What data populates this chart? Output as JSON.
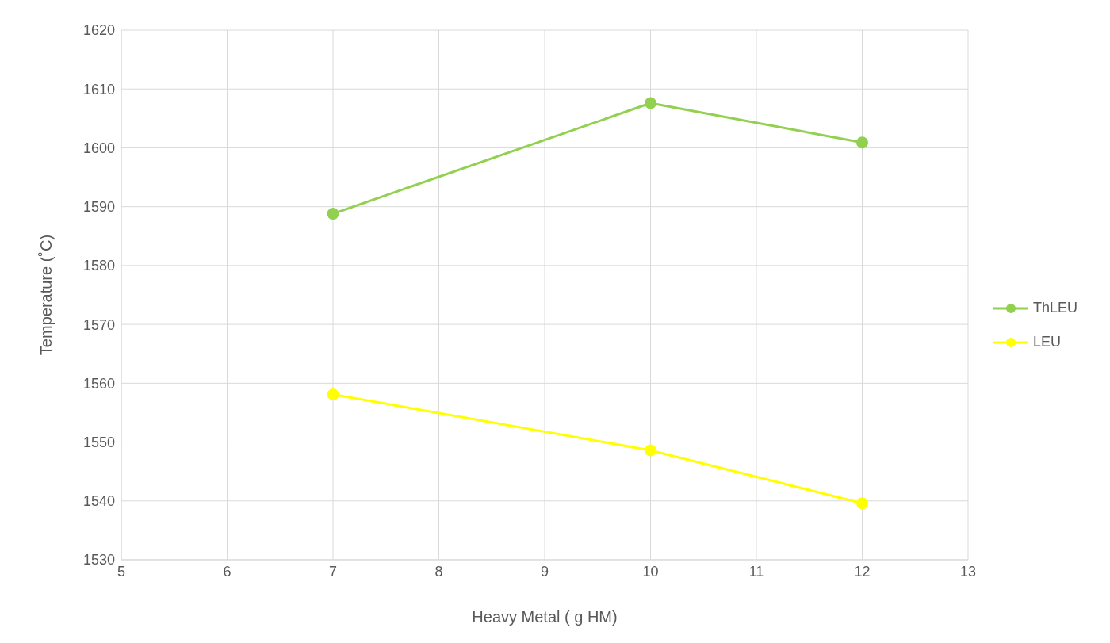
{
  "chart_data": {
    "type": "line",
    "xlabel": "Heavy Metal ( g HM)",
    "ylabel": "Temperature (˚C)",
    "x": [
      7,
      10,
      12
    ],
    "series": [
      {
        "name": "ThLEU",
        "color": "#92d050",
        "values": [
          1588.8,
          1607.6,
          1600.9
        ]
      },
      {
        "name": "LEU",
        "color": "#ffff00",
        "values": [
          1558.1,
          1548.6,
          1539.6
        ]
      }
    ],
    "xlim": [
      5,
      13
    ],
    "xticks": [
      5,
      6,
      7,
      8,
      9,
      10,
      11,
      12,
      13
    ],
    "ylim": [
      1530,
      1620
    ],
    "yticks": [
      1530,
      1540,
      1550,
      1560,
      1570,
      1580,
      1590,
      1600,
      1610,
      1620
    ],
    "grid": true,
    "legend": "right",
    "marker": "circle",
    "line_style": "solid"
  }
}
